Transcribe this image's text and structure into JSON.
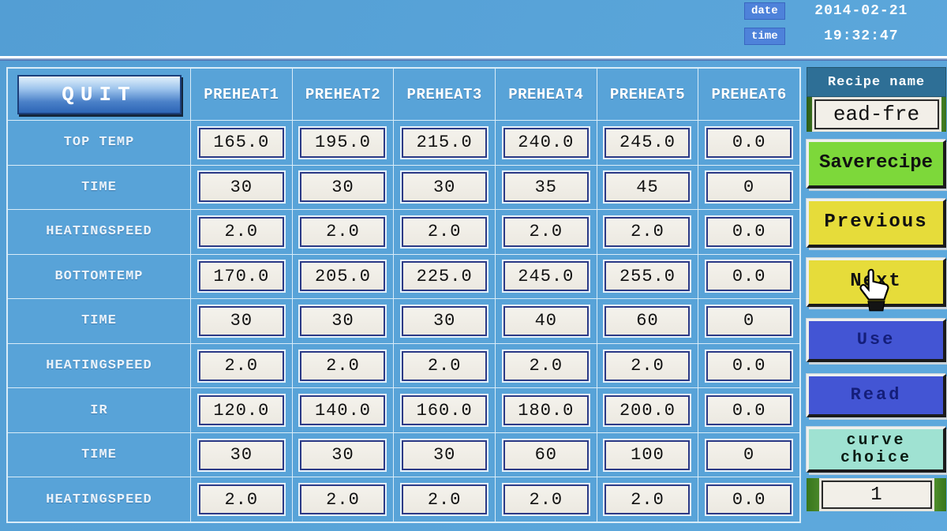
{
  "statusbar": {
    "date_label": "date",
    "date_value": "2014-02-21",
    "time_label": "time",
    "time_value": "19:32:47"
  },
  "table": {
    "quit_label": "QUIT",
    "columns": [
      "PREHEAT1",
      "PREHEAT2",
      "PREHEAT3",
      "PREHEAT4",
      "PREHEAT5",
      "PREHEAT6"
    ],
    "rows": [
      {
        "label": "TOP TEMP",
        "values": [
          "165.0",
          "195.0",
          "215.0",
          "240.0",
          "245.0",
          "0.0"
        ]
      },
      {
        "label": "TIME",
        "values": [
          "30",
          "30",
          "30",
          "35",
          "45",
          "0"
        ]
      },
      {
        "label": "HEATINGSPEED",
        "values": [
          "2.0",
          "2.0",
          "2.0",
          "2.0",
          "2.0",
          "0.0"
        ]
      },
      {
        "label": "BOTTOMTEMP",
        "values": [
          "170.0",
          "205.0",
          "225.0",
          "245.0",
          "255.0",
          "0.0"
        ]
      },
      {
        "label": "TIME",
        "values": [
          "30",
          "30",
          "30",
          "40",
          "60",
          "0"
        ]
      },
      {
        "label": "HEATINGSPEED",
        "values": [
          "2.0",
          "2.0",
          "2.0",
          "2.0",
          "2.0",
          "0.0"
        ]
      },
      {
        "label": "IR",
        "values": [
          "120.0",
          "140.0",
          "160.0",
          "180.0",
          "200.0",
          "0.0"
        ]
      },
      {
        "label": "TIME",
        "values": [
          "30",
          "30",
          "30",
          "60",
          "100",
          "0"
        ]
      },
      {
        "label": "HEATINGSPEED",
        "values": [
          "2.0",
          "2.0",
          "2.0",
          "2.0",
          "2.0",
          "0.0"
        ]
      }
    ]
  },
  "sidebar": {
    "recipe_name_label": "Recipe name",
    "recipe_name_value": "ead-fre",
    "buttons": {
      "save": "Saverecipe",
      "previous": "Previous",
      "next": "Next",
      "use": "Use",
      "read": "Read",
      "curve_line1": "curve",
      "curve_line2": "choice"
    },
    "curve_number": "1"
  },
  "colors": {
    "screen-blue": "#58a3d8",
    "grid-line": "#d9ecf8",
    "cell-box-bg": "#ece9e1",
    "cell-box-border": "#2c3a86",
    "badge-blue": "#4e82da",
    "recipe-header-bg": "#2e6f96",
    "strip-green": "#55a02a",
    "save-green": "#7dd83a",
    "nav-yellow": "#e6dc3a",
    "action-blue": "#4355d4",
    "action-blue-text": "#141e7a",
    "curve-cyan": "#9fe2d2",
    "input-bg": "#f2efe8"
  }
}
